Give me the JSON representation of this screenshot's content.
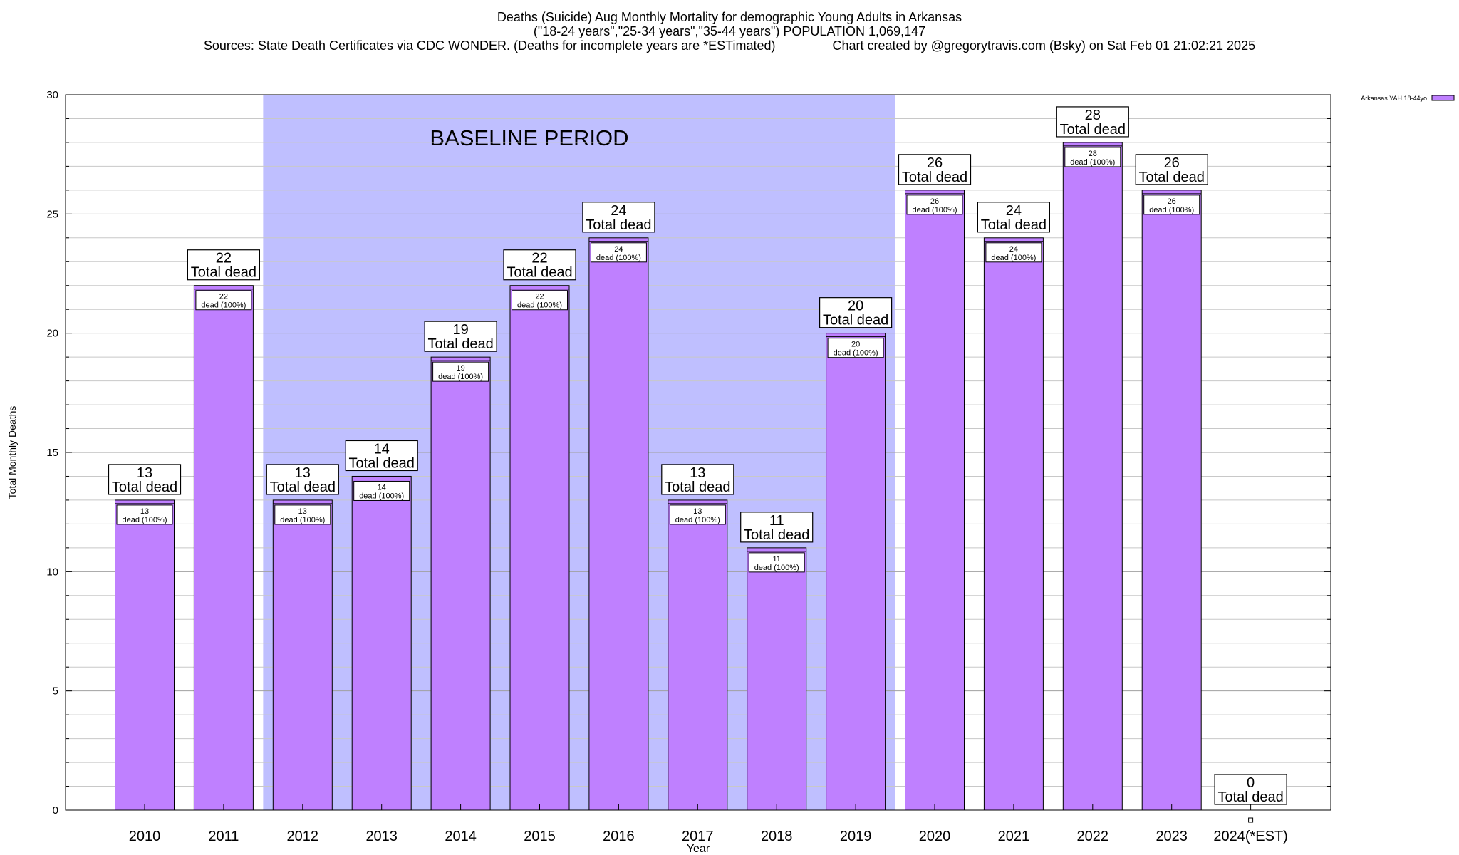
{
  "chart_data": {
    "type": "bar",
    "title_lines": [
      "Deaths (Suicide) Aug Monthly Mortality for demographic Young Adults in Arkansas",
      "(\"18-24 years\",\"25-34 years\",\"35-44 years\") POPULATION 1,069,147",
      "Sources: State Death Certificates via CDC WONDER. (Deaths for incomplete years are *ESTimated)                Chart created by @gregorytravis.com (Bsky) on Sat Feb 01 21:02:21 2025"
    ],
    "xlabel": "Year",
    "ylabel": "Total Monthly Deaths",
    "ylim": [
      0,
      30
    ],
    "yticks": [
      0,
      5,
      10,
      15,
      20,
      25,
      30
    ],
    "grid": true,
    "categories": [
      "2010",
      "2011",
      "2012",
      "2013",
      "2014",
      "2015",
      "2016",
      "2017",
      "2018",
      "2019",
      "2020",
      "2021",
      "2022",
      "2023",
      "2024(*EST)"
    ],
    "series": [
      {
        "name": "Arkansas YAH 18-44yo",
        "color": "#bf80ff",
        "values": [
          13,
          22,
          13,
          14,
          19,
          22,
          24,
          13,
          11,
          20,
          26,
          24,
          28,
          26,
          0
        ]
      }
    ],
    "total_label_suffix": "Total dead",
    "inner_label_suffix": "dead (100%)",
    "baseline": {
      "label": "BASELINE PERIOD",
      "start": "2012",
      "end": "2019",
      "color": "#bfbfff"
    },
    "legend_position": "top-right"
  }
}
